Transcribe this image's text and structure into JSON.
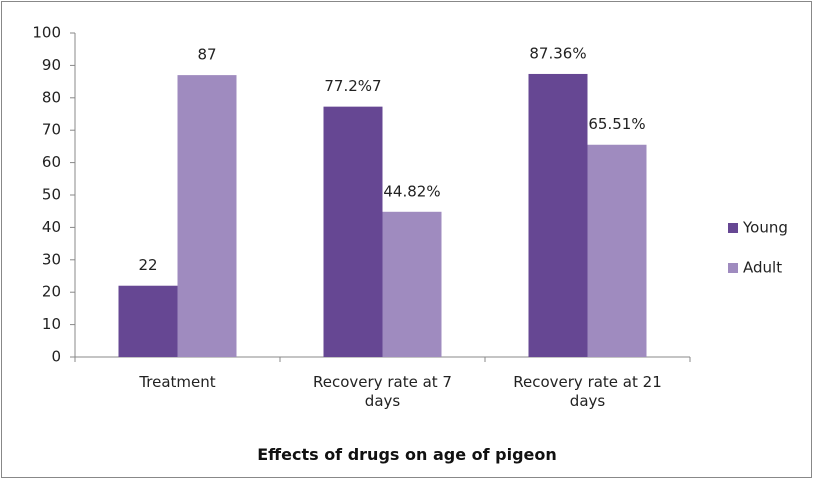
{
  "chart_data": {
    "type": "bar",
    "x_label": "Effects of drugs on age of pigeon",
    "categories": [
      "Treatment",
      "Recovery rate at 7 days",
      "Recovery rate at 21 days"
    ],
    "series": [
      {
        "name": "Young",
        "color": "#664793",
        "values": [
          22,
          77.27,
          87.36
        ],
        "value_labels": [
          "22",
          "77.2%7",
          "87.36%"
        ]
      },
      {
        "name": "Adult",
        "color": "#9f8bbf",
        "values": [
          87,
          44.82,
          65.51
        ],
        "value_labels": [
          "87",
          "44.82%",
          "65.51%"
        ]
      }
    ],
    "ylim": [
      0,
      100
    ],
    "yticks": [
      0,
      10,
      20,
      30,
      40,
      50,
      60,
      70,
      80,
      90,
      100
    ],
    "grid": false,
    "legend": "right"
  }
}
